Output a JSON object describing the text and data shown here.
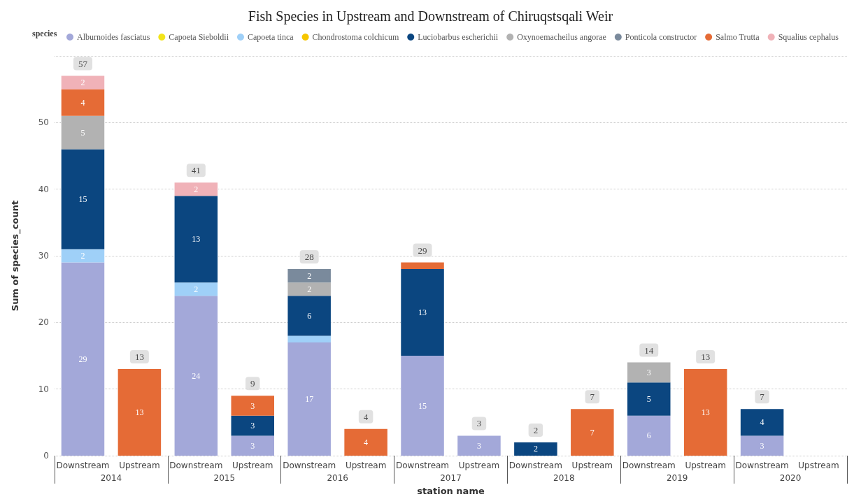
{
  "chart_data": {
    "type": "bar",
    "stacked": true,
    "title": "Fish Species in Upstream and Downstream of Chiruqstsqali Weir",
    "xlabel": "station name",
    "ylabel": "Sum of species_count",
    "legend_title": "species",
    "legend": "top left",
    "grid": "y",
    "categories": [
      "Downstream",
      "Upstream",
      "Downstream",
      "Upstream",
      "Downstream",
      "Upstream",
      "Downstream",
      "Upstream",
      "Downstream",
      "Upstream",
      "Downstream",
      "Upstream",
      "Downstream",
      "Upstream"
    ],
    "annotations": [
      "2014",
      "2015",
      "2016",
      "2017",
      "2018",
      "2019",
      "2020"
    ],
    "ylim": [
      0,
      60
    ],
    "yticks": [
      0,
      10,
      20,
      30,
      40,
      50,
      {
        "value": 60,
        "label": null
      }
    ],
    "series": [
      {
        "name": "Alburnoides fasciatus",
        "color": "#a3a8d9",
        "values": [
          29,
          null,
          24,
          3,
          17,
          null,
          15,
          3,
          null,
          null,
          6,
          null,
          3,
          null
        ],
        "value_labels": [
          "29",
          null,
          "24",
          "3",
          "17",
          null,
          "15",
          "3",
          null,
          null,
          "6",
          null,
          "3",
          null
        ]
      },
      {
        "name": "Capoeta Sieboldii",
        "color": "#f2e41a",
        "values": [
          null,
          null,
          null,
          null,
          null,
          null,
          null,
          null,
          null,
          null,
          null,
          null,
          null,
          null
        ]
      },
      {
        "name": "Capoeta tinca",
        "color": "#9fd0f8",
        "values": [
          2,
          null,
          2,
          null,
          1,
          null,
          null,
          null,
          null,
          null,
          null,
          null,
          null,
          null
        ],
        "value_labels": [
          "2",
          null,
          "2",
          null,
          null,
          null,
          null,
          null,
          null,
          null,
          null,
          null,
          null,
          null
        ]
      },
      {
        "name": "Chondrostoma colchicum",
        "color": "#f6c600",
        "values": [
          null,
          null,
          null,
          null,
          null,
          null,
          null,
          null,
          null,
          null,
          null,
          null,
          null,
          null
        ]
      },
      {
        "name": "Luciobarbus escherichii",
        "color": "#0b4680",
        "values": [
          15,
          null,
          13,
          3,
          6,
          null,
          13,
          null,
          2,
          null,
          5,
          null,
          4,
          null
        ],
        "value_labels": [
          "15",
          null,
          "13",
          "3",
          "6",
          null,
          "13",
          null,
          "2",
          null,
          "5",
          null,
          "4",
          null
        ]
      },
      {
        "name": "Oxynoemacheilus angorae",
        "color": "#b2b2b2",
        "values": [
          5,
          null,
          null,
          null,
          2,
          null,
          null,
          null,
          null,
          null,
          3,
          null,
          null,
          null
        ],
        "value_labels": [
          "5",
          null,
          null,
          null,
          "2",
          null,
          null,
          null,
          null,
          null,
          "3",
          null,
          null,
          null
        ]
      },
      {
        "name": "Ponticola constructor",
        "color": "#7a8a9c",
        "values": [
          null,
          null,
          null,
          null,
          2,
          null,
          null,
          null,
          null,
          null,
          null,
          null,
          null,
          null
        ],
        "value_labels": [
          null,
          null,
          null,
          null,
          "2",
          null,
          null,
          null,
          null,
          null,
          null,
          null,
          null,
          null
        ]
      },
      {
        "name": "Salmo Trutta",
        "color": "#e56b36",
        "values": [
          4,
          13,
          null,
          3,
          null,
          4,
          1,
          null,
          null,
          7,
          null,
          13,
          null,
          null
        ],
        "value_labels": [
          "4",
          "13",
          null,
          "3",
          null,
          "4",
          null,
          null,
          null,
          "7",
          null,
          "13",
          null,
          null
        ]
      },
      {
        "name": "Squalius cephalus",
        "color": "#f0b2b8",
        "values": [
          2,
          null,
          2,
          null,
          null,
          null,
          null,
          null,
          null,
          null,
          null,
          null,
          null,
          null
        ],
        "value_labels": [
          "2",
          null,
          "2",
          null,
          null,
          null,
          null,
          null,
          null,
          null,
          null,
          null,
          null,
          null
        ]
      }
    ],
    "totals": [
      "57",
      "13",
      "41",
      "9",
      "28",
      "4",
      "29",
      "3",
      "2",
      "7",
      "14",
      "13",
      "7",
      null
    ]
  }
}
